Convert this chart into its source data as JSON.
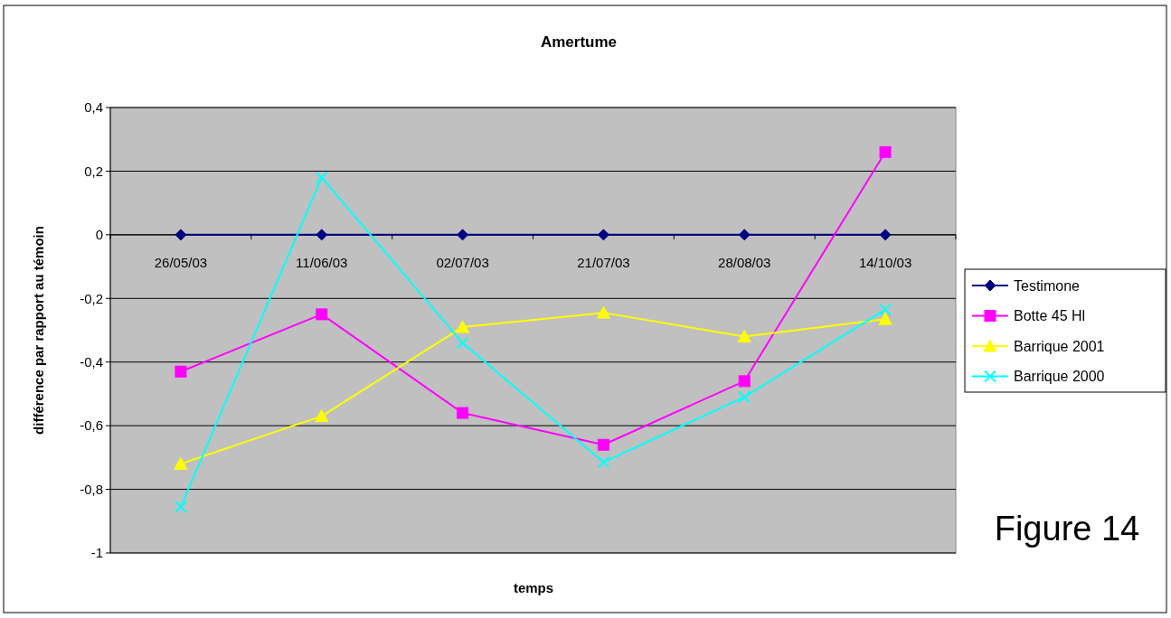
{
  "chart_data": {
    "type": "line",
    "title": "Amertume",
    "xlabel": "temps",
    "ylabel": "différence par rapport au témoin",
    "categories": [
      "26/05/03",
      "11/06/03",
      "02/07/03",
      "21/07/03",
      "28/08/03",
      "14/10/03"
    ],
    "ylim": [
      -1,
      0.4
    ],
    "yticks": [
      {
        "value": -1,
        "label": "-1"
      },
      {
        "value": -0.8,
        "label": "-0,8"
      },
      {
        "value": -0.6,
        "label": "-0,6"
      },
      {
        "value": -0.4,
        "label": "-0,4"
      },
      {
        "value": -0.2,
        "label": "-0,2"
      },
      {
        "value": 0,
        "label": "0"
      },
      {
        "value": 0.2,
        "label": "0,2"
      },
      {
        "value": 0.4,
        "label": "0,4"
      }
    ],
    "grid": "y",
    "legend": "right",
    "series": [
      {
        "name": "Testimone",
        "color": "#000080",
        "marker": "diamond",
        "values": [
          0,
          0,
          0,
          0,
          0,
          0
        ]
      },
      {
        "name": "Botte 45 Hl",
        "color": "#ff00ff",
        "marker": "square",
        "values": [
          -0.43,
          -0.25,
          -0.56,
          -0.66,
          -0.46,
          0.26
        ]
      },
      {
        "name": "Barrique 2001",
        "color": "#ffff00",
        "marker": "triangle",
        "values": [
          -0.72,
          -0.57,
          -0.29,
          -0.245,
          -0.32,
          -0.265
        ]
      },
      {
        "name": "Barrique 2000",
        "color": "#00ffff",
        "marker": "cross",
        "values": [
          -0.855,
          0.18,
          -0.34,
          -0.715,
          -0.51,
          -0.235
        ]
      }
    ],
    "annotations": [
      "Figure 14"
    ]
  }
}
